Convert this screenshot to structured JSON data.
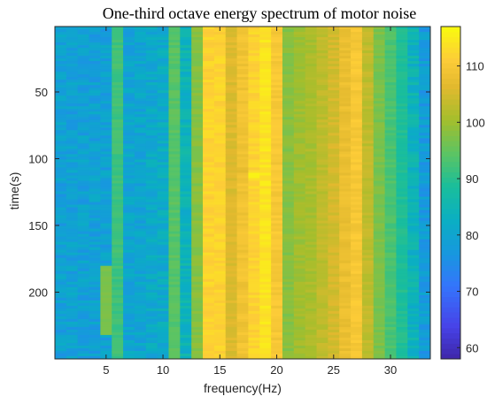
{
  "chart_data": {
    "type": "heatmap",
    "title": "One-third octave energy spectrum of motor noise",
    "xlabel": "frequency(Hz)",
    "ylabel": "time(s)",
    "x": [
      1,
      2,
      3,
      4,
      5,
      6,
      7,
      8,
      9,
      10,
      11,
      12,
      13,
      14,
      15,
      16,
      17,
      18,
      19,
      20,
      21,
      22,
      23,
      24,
      25,
      26,
      27,
      28,
      29,
      30,
      31,
      32,
      33
    ],
    "xlim": [
      0.5,
      33.5
    ],
    "ylim": [
      1,
      250
    ],
    "y_reversed": true,
    "x_ticks": [
      5,
      10,
      15,
      20,
      25,
      30
    ],
    "y_ticks": [
      50,
      100,
      150,
      200
    ],
    "colorbar": {
      "min": 58,
      "max": 117,
      "ticks": [
        60,
        70,
        80,
        90,
        100,
        110
      ],
      "colormap": "parula"
    },
    "column_levels_db": [
      79,
      79,
      79,
      79,
      79,
      92,
      80,
      80,
      81,
      82,
      94,
      84,
      98,
      112,
      112,
      106,
      109,
      112,
      114,
      110,
      98,
      100,
      101,
      103,
      105,
      108,
      110,
      103,
      97,
      93,
      89,
      84,
      78
    ],
    "anomalies": [
      {
        "x": 5,
        "time_from": 180,
        "time_to": 233,
        "level_db": 97
      },
      {
        "x": 17,
        "time_from": 106,
        "time_to": 111,
        "level_db": 107
      },
      {
        "x": 18,
        "time_from": 111,
        "time_to": 115,
        "level_db": 116
      }
    ],
    "grid": false,
    "legend": "colorbar-right"
  }
}
